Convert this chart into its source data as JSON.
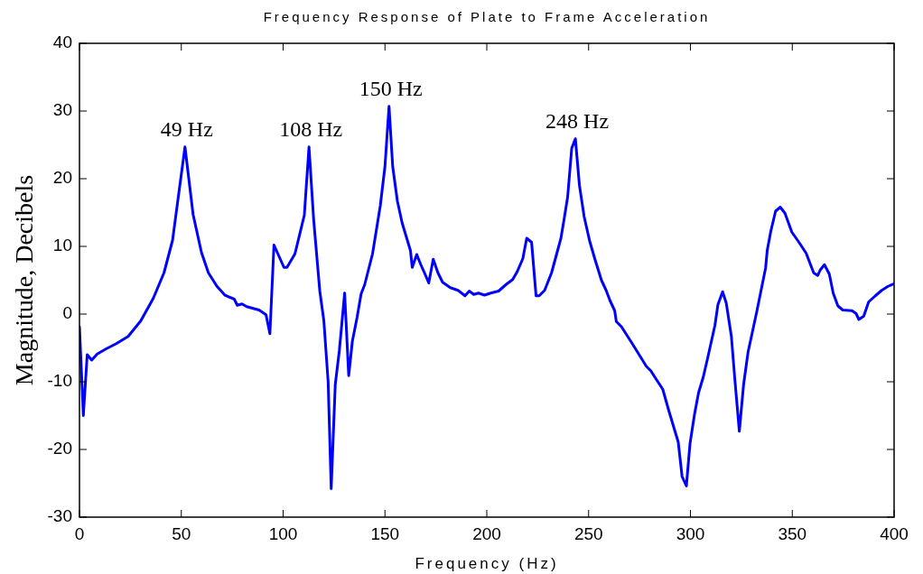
{
  "chart_data": {
    "type": "line",
    "title": "Frequency Response of Plate to Frame Acceleration",
    "xlabel": "Frequency (Hz)",
    "ylabel": "Magnitude, Decibels",
    "xlim": [
      0,
      400
    ],
    "xticks": [
      0,
      50,
      100,
      150,
      200,
      250,
      300,
      350,
      400
    ],
    "ylim": [
      -30,
      40
    ],
    "yticks": [
      -30,
      -20,
      -10,
      0,
      10,
      20,
      30,
      40
    ],
    "grid": false,
    "legend": false,
    "marker": "none",
    "line_style": "solid",
    "annotations": [
      {
        "text": "49 Hz",
        "x": 51.8,
        "y": 24.7
      },
      {
        "text": "108 Hz",
        "x": 112.7,
        "y": 24.7
      },
      {
        "text": "150 Hz",
        "x": 152,
        "y": 30.7
      },
      {
        "text": "248 Hz",
        "x": 243.5,
        "y": 25.9
      }
    ],
    "series": [
      {
        "color": "#0000ff",
        "x": [
          0,
          1.9,
          3.8,
          6,
          8.7,
          13.3,
          17.9,
          23.9,
          30.1,
          36.2,
          41.5,
          45.7,
          51.8,
          55.8,
          59.9,
          63.3,
          67.5,
          71.4,
          76,
          77.5,
          79.8,
          82.1,
          88.2,
          91.6,
          93.5,
          95.5,
          100.4,
          101.9,
          105.8,
          110.4,
          112.7,
          115,
          118,
          120,
          122.1,
          123.6,
          125.6,
          127.6,
          130.2,
          132.2,
          134,
          136.3,
          138.3,
          140,
          143.9,
          147.7,
          150,
          152,
          153.8,
          156.1,
          158.4,
          162.5,
          163.4,
          165.6,
          167.6,
          169.4,
          171.5,
          173.7,
          176,
          178.3,
          182.1,
          185.9,
          189.3,
          191.4,
          193.6,
          195.9,
          198.9,
          201.9,
          205.8,
          209.6,
          212.7,
          215,
          217.7,
          219.6,
          222,
          224.2,
          225.7,
          228.4,
          231.8,
          236.4,
          237.9,
          239.7,
          241.7,
          243.5,
          245.5,
          247.8,
          250.5,
          253.2,
          256.3,
          258.6,
          260.5,
          262.8,
          263.6,
          266.2,
          271.5,
          278.3,
          280.6,
          282.9,
          286.4,
          289.4,
          294,
          295.9,
          298,
          299.8,
          302,
          304,
          306.3,
          308.6,
          312,
          313.5,
          315.8,
          317.6,
          320.1,
          321.9,
          324,
          326.1,
          328.3,
          332.6,
          336.9,
          337.7,
          339.5,
          341.8,
          344.1,
          346.4,
          349.8,
          353.3,
          356.8,
          360.5,
          362.5,
          363.7,
          365.8,
          368.2,
          370.1,
          372.4,
          374.8,
          379.3,
          381.3,
          382.7,
          385.1,
          387.5,
          390.8,
          393.9,
          397,
          400
        ],
        "values": [
          -1.9,
          -15,
          -6,
          -6.8,
          -5.9,
          -5.1,
          -4.4,
          -3.3,
          -1,
          2.3,
          6.1,
          10.9,
          24.7,
          14.7,
          9.1,
          6.1,
          4.1,
          2.8,
          2.2,
          1.3,
          1.5,
          1.1,
          0.6,
          -0.1,
          -2.9,
          10.2,
          6.9,
          6.9,
          8.9,
          14.6,
          24.7,
          13.9,
          3.4,
          -1,
          -10,
          -25.8,
          -10.4,
          -5.4,
          3.1,
          -9.1,
          -4,
          -0.5,
          3,
          4.3,
          8.9,
          16,
          21.8,
          30.7,
          21.8,
          16.7,
          13.5,
          9.4,
          6.9,
          8.8,
          7.3,
          6.1,
          4.6,
          8.1,
          6.1,
          4.7,
          3.9,
          3.5,
          2.7,
          3.4,
          2.9,
          3.1,
          2.8,
          3.1,
          3.4,
          4.4,
          5.1,
          6.3,
          8.2,
          11.2,
          10.6,
          2.7,
          2.7,
          3.5,
          6.1,
          11.2,
          13.9,
          17.3,
          24.5,
          25.9,
          19,
          14.4,
          10.8,
          8,
          5,
          3.5,
          2,
          0.5,
          -1.1,
          -1.9,
          -4.4,
          -7.7,
          -8.4,
          -9.5,
          -11.1,
          -14.3,
          -18.9,
          -24,
          -25.4,
          -19.1,
          -14.8,
          -11.6,
          -9.3,
          -6.3,
          -1.7,
          1.4,
          3.3,
          1.6,
          -3.3,
          -10,
          -17.3,
          -10.4,
          -5.6,
          0.4,
          6.8,
          9.4,
          12.3,
          15.2,
          15.8,
          14.9,
          12.1,
          10.6,
          9,
          6.1,
          5.7,
          6.5,
          7.3,
          5.9,
          3.1,
          1.2,
          0.6,
          0.5,
          0.1,
          -0.8,
          -0.3,
          1.8,
          2.7,
          3.5,
          4.1,
          4.5
        ]
      }
    ]
  }
}
